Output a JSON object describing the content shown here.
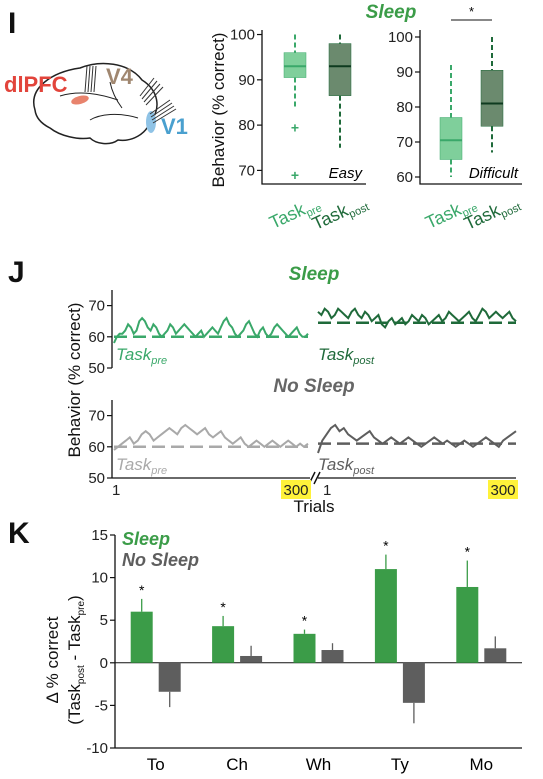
{
  "panel_labels": {
    "I": "I",
    "J": "J",
    "K": "K"
  },
  "brain": {
    "area_dlpfc": "dlPFC",
    "area_v4": "V4",
    "area_v1": "V1"
  },
  "colors": {
    "sleep_green": "#3b9c48",
    "light_green": "#7fcf9b",
    "dark_green": "#1f6a3a",
    "mid_green": "#3aa86a",
    "gray_light": "#a9a9a9",
    "gray_dark": "#5e5e5e",
    "highlight": "#fff23a",
    "dlpfc_red": "#e2443b",
    "v4_tan": "#a08770",
    "v1_blue": "#4aa0cf"
  },
  "chart_data": [
    {
      "panel": "I",
      "type": "box",
      "title": "Sleep",
      "ylabel": "Behavior  (% correct)",
      "subplots": [
        {
          "condition": "Easy",
          "ylim": [
            67,
            101
          ],
          "yticks": [
            70,
            80,
            90,
            100
          ],
          "categories": [
            "Task pre",
            "Task post"
          ],
          "boxes": [
            {
              "name": "Task pre",
              "whisker_low": 84,
              "q1": 90.5,
              "median": 93,
              "q3": 96,
              "whisker_high": 100,
              "outliers": [
                79.5,
                69
              ]
            },
            {
              "name": "Task post",
              "whisker_low": 75,
              "q1": 86.5,
              "median": 93,
              "q3": 98,
              "whisker_high": 100,
              "outliers": []
            }
          ],
          "significance": ""
        },
        {
          "condition": "Difficult",
          "ylim": [
            58,
            102
          ],
          "yticks": [
            60,
            70,
            80,
            90,
            100
          ],
          "categories": [
            "Task pre",
            "Task post"
          ],
          "boxes": [
            {
              "name": "Task pre",
              "whisker_low": 60,
              "q1": 65,
              "median": 70.5,
              "q3": 77,
              "whisker_high": 92,
              "outliers": []
            },
            {
              "name": "Task post",
              "whisker_low": 67,
              "q1": 74.5,
              "median": 81,
              "q3": 90.5,
              "whisker_high": 100,
              "outliers": []
            }
          ],
          "significance": "*"
        }
      ]
    },
    {
      "panel": "J",
      "type": "line",
      "ylabel": "Behavior (% correct)",
      "xlabel": "Trials",
      "xticks": [
        "1",
        "300",
        "1",
        "300"
      ],
      "ylim": [
        50,
        75
      ],
      "yticks": [
        50,
        60,
        70
      ],
      "series": [
        {
          "condition": "Sleep",
          "name": "Task pre",
          "baseline": 60,
          "values": [
            58,
            60,
            61,
            61,
            62,
            64,
            63,
            61,
            62,
            65,
            66,
            65,
            63,
            62,
            64,
            63,
            61,
            60,
            61,
            62,
            64,
            63,
            61,
            62,
            63,
            64,
            63,
            62,
            61,
            60,
            61,
            62,
            60,
            61,
            62,
            63,
            62,
            61,
            63,
            65,
            66,
            64,
            63,
            61,
            60,
            61,
            62,
            64,
            65,
            63,
            61,
            60,
            62,
            63,
            61,
            60,
            61,
            63,
            64,
            63,
            62,
            61,
            60,
            61,
            62,
            63,
            61,
            60,
            60,
            61
          ]
        },
        {
          "condition": "Sleep",
          "name": "Task post",
          "baseline": 64.5,
          "values": [
            68,
            67,
            69,
            68,
            66,
            67,
            69,
            68,
            67,
            66,
            68,
            69,
            67,
            66,
            68,
            67,
            65,
            66,
            67,
            64,
            63,
            65,
            66,
            64,
            65,
            66,
            64,
            65,
            67,
            66,
            65,
            67,
            66,
            64,
            65,
            66,
            67,
            65,
            66,
            68,
            67,
            66,
            65,
            66,
            67,
            68,
            66,
            65,
            67,
            69,
            68,
            66,
            67,
            68,
            67,
            66,
            67,
            68,
            66,
            65
          ]
        },
        {
          "condition": "No Sleep",
          "name": "Task pre",
          "baseline": 60,
          "values": [
            59,
            60,
            61,
            62,
            63,
            61,
            62,
            64,
            65,
            64,
            62,
            63,
            64,
            65,
            66,
            65,
            64,
            66,
            67,
            66,
            65,
            64,
            65,
            66,
            64,
            63,
            64,
            65,
            63,
            62,
            61,
            62,
            63,
            61,
            60,
            61,
            62,
            61,
            60,
            61,
            62,
            61,
            60,
            61,
            62,
            61,
            60,
            61,
            60,
            61
          ]
        },
        {
          "condition": "No Sleep",
          "name": "Task post",
          "baseline": 61,
          "values": [
            58,
            62,
            64,
            66,
            67,
            65,
            66,
            64,
            63,
            62,
            63,
            64,
            65,
            63,
            62,
            61,
            62,
            63,
            62,
            61,
            62,
            63,
            62,
            61,
            60,
            61,
            62,
            63,
            62,
            61,
            62,
            61,
            60,
            61,
            62,
            61,
            60,
            61,
            62,
            63,
            62,
            61,
            60,
            62,
            63,
            64,
            65
          ]
        }
      ],
      "legend": [
        "Sleep",
        "No Sleep"
      ],
      "labels": {
        "pre": "Task",
        "pre_sub": "pre",
        "post": "Task",
        "post_sub": "post",
        "sleep": "Sleep",
        "nosleep": "No Sleep"
      }
    },
    {
      "panel": "K",
      "type": "bar",
      "ylabel_line1": "Δ % correct",
      "ylabel_line2_main": "Task",
      "ylabel_line2_sub1": "post",
      "ylabel_line2_mid": " - Task",
      "ylabel_line2_sub2": "pre",
      "categories": [
        "To",
        "Ch",
        "Wh",
        "Ty",
        "Mo"
      ],
      "ylim": [
        -10,
        15
      ],
      "yticks": [
        -10,
        -5,
        0,
        5,
        10,
        15
      ],
      "series": [
        {
          "name": "Sleep",
          "values": [
            6,
            4.3,
            3.4,
            11,
            8.9
          ],
          "errors": [
            1.5,
            1.2,
            0.5,
            1.7,
            3.1
          ],
          "significance": [
            "*",
            "*",
            "*",
            "*",
            "*"
          ]
        },
        {
          "name": "No Sleep",
          "values": [
            -3.4,
            0.8,
            1.5,
            -4.7,
            1.7
          ],
          "errors": [
            1.8,
            1.2,
            0.8,
            2.4,
            1.4
          ]
        }
      ]
    }
  ]
}
